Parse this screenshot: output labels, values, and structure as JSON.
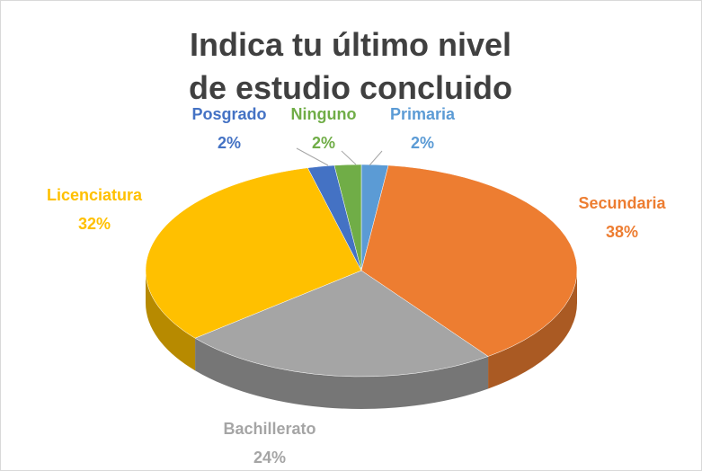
{
  "chart_data": {
    "type": "pie3d",
    "title": "Indica tu último nivel de estudio concluido",
    "categories": [
      "Primaria",
      "Secundaria",
      "Bachillerato",
      "Licenciatura",
      "Posgrado",
      "Ninguno"
    ],
    "values": [
      2,
      38,
      24,
      32,
      2,
      2
    ],
    "value_labels": [
      "2%",
      "38%",
      "24%",
      "32%",
      "2%",
      "2%"
    ],
    "colors": [
      "#5b9bd5",
      "#ed7d31",
      "#a5a5a5",
      "#ffc000",
      "#4472c4",
      "#70ad47"
    ]
  }
}
